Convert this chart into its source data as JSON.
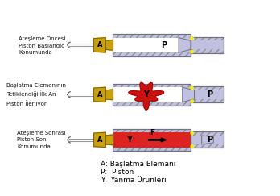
{
  "bg_color": "#ffffff",
  "labels": {
    "row1": [
      "Ateşleme Öncesi",
      "Piston Başlangıç",
      "Konumunda"
    ],
    "row2": [
      "Başlatma Elemanının",
      "Tetiklendiği İlk An",
      "Piston İlerliyor"
    ],
    "row3": [
      "Ateşleme Sonrası",
      "Piston Son",
      "Konumunda"
    ]
  },
  "legend": [
    "A: Başlatma Elemanı",
    "P:  Piston",
    "Y:  Yanma Ürünleri"
  ],
  "body_color": "#c0c0e0",
  "body_stroke": "#707080",
  "hatch_color": "#909090",
  "initiator_color": "#c8a010",
  "initiator_stroke": "#806000",
  "chamber_fill_empty": "#ffffff",
  "chamber_fill_red": "#dd2222",
  "piston_color": "#c0c0e0",
  "piston_stroke": "#707080",
  "yellow_dot": "#ffee00",
  "rod_color": "#aaaaaa",
  "label_fontsize": 5.0,
  "legend_fontsize": 6.5
}
